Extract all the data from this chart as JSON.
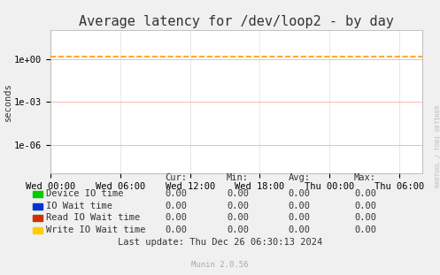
{
  "title": "Average latency for /dev/loop2 - by day",
  "ylabel": "seconds",
  "background_color": "#f0f0f0",
  "plot_background": "#ffffff",
  "grid_color_major": "#ff9999",
  "grid_color_minor": "#dddddd",
  "x_ticks_labels": [
    "Wed 00:00",
    "Wed 06:00",
    "Wed 12:00",
    "Wed 18:00",
    "Thu 00:00",
    "Thu 06:00"
  ],
  "x_ticks_positions": [
    0,
    6,
    12,
    18,
    24,
    30
  ],
  "x_range": [
    0,
    32
  ],
  "dashed_line_value": 1.5,
  "dashed_line_color": "#ff9900",
  "bottom_line_color": "#cccc00",
  "legend_items": [
    {
      "label": "Device IO time",
      "color": "#00cc00"
    },
    {
      "label": "IO Wait time",
      "color": "#0033cc"
    },
    {
      "label": "Read IO Wait time",
      "color": "#cc3300"
    },
    {
      "label": "Write IO Wait time",
      "color": "#ffcc00"
    }
  ],
  "table_headers": [
    "Cur:",
    "Min:",
    "Avg:",
    "Max:"
  ],
  "table_rows": [
    [
      "Device IO time",
      "0.00",
      "0.00",
      "0.00",
      "0.00"
    ],
    [
      "IO Wait time",
      "0.00",
      "0.00",
      "0.00",
      "0.00"
    ],
    [
      "Read IO Wait time",
      "0.00",
      "0.00",
      "0.00",
      "0.00"
    ],
    [
      "Write IO Wait time",
      "0.00",
      "0.00",
      "0.00",
      "0.00"
    ]
  ],
  "footer_text": "Last update: Thu Dec 26 06:30:13 2024",
  "watermark_text": "Munin 2.0.56",
  "rrdtool_text": "RRDTOOL / TOBI OETIKER",
  "title_fontsize": 11,
  "axis_fontsize": 7.5,
  "legend_fontsize": 7.5,
  "table_fontsize": 7.5
}
